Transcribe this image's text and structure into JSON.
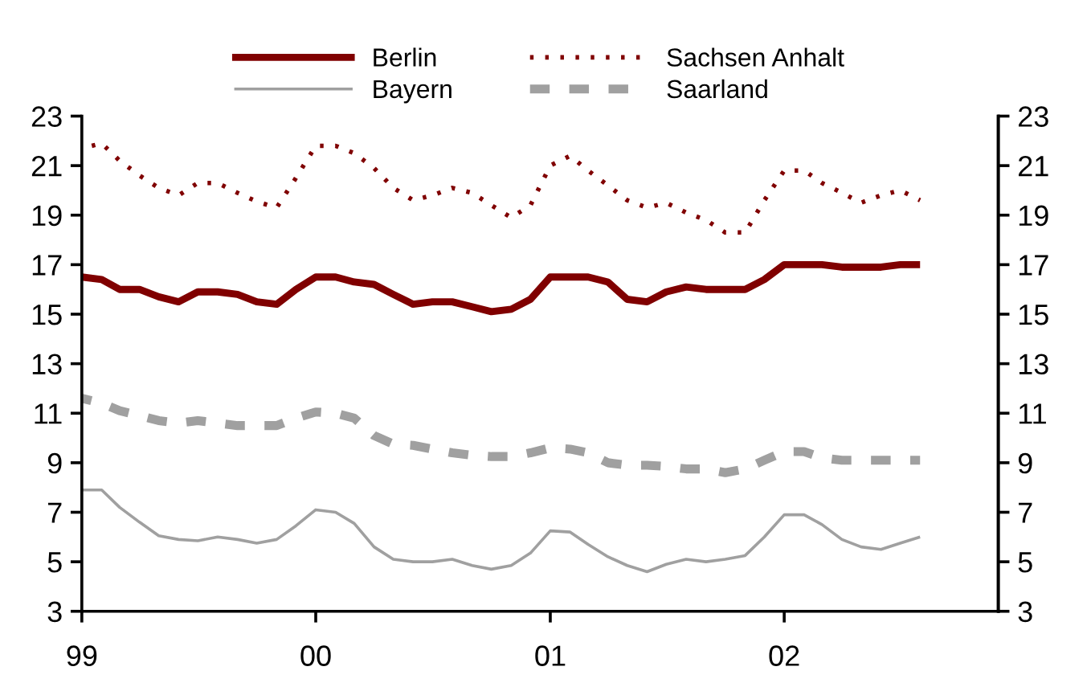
{
  "chart_data": {
    "type": "line",
    "x": [
      "1999-01",
      "1999-02",
      "1999-03",
      "1999-04",
      "1999-05",
      "1999-06",
      "1999-07",
      "1999-08",
      "1999-09",
      "1999-10",
      "1999-11",
      "1999-12",
      "2000-01",
      "2000-02",
      "2000-03",
      "2000-04",
      "2000-05",
      "2000-06",
      "2000-07",
      "2000-08",
      "2000-09",
      "2000-10",
      "2000-11",
      "2000-12",
      "2001-01",
      "2001-02",
      "2001-03",
      "2001-04",
      "2001-05",
      "2001-06",
      "2001-07",
      "2001-08",
      "2001-09",
      "2001-10",
      "2001-11",
      "2001-12",
      "2002-01",
      "2002-02",
      "2002-03",
      "2002-04",
      "2002-05",
      "2002-06",
      "2002-07",
      "2002-08"
    ],
    "series": [
      {
        "name": "Berlin",
        "color": "#800000",
        "line_style": "solid",
        "values": [
          16.5,
          16.4,
          16.0,
          16.0,
          15.7,
          15.5,
          15.9,
          15.9,
          15.8,
          15.5,
          15.4,
          16.0,
          16.5,
          16.5,
          16.3,
          16.2,
          15.8,
          15.4,
          15.5,
          15.5,
          15.3,
          15.1,
          15.2,
          15.6,
          16.5,
          16.5,
          16.5,
          16.3,
          15.6,
          15.5,
          15.9,
          16.1,
          16.0,
          16.0,
          16.0,
          16.4,
          17.0,
          17.0,
          17.0,
          16.9,
          16.9,
          16.9,
          17.0,
          17.0
        ]
      },
      {
        "name": "Bayern",
        "color": "#a0a0a0",
        "line_style": "solid",
        "values": [
          7.9,
          7.9,
          7.2,
          6.6,
          6.05,
          5.9,
          5.85,
          6.0,
          5.9,
          5.75,
          5.9,
          6.45,
          7.1,
          7.0,
          6.55,
          5.6,
          5.1,
          5.0,
          5.0,
          5.1,
          4.85,
          4.7,
          4.85,
          5.35,
          6.25,
          6.2,
          5.7,
          5.2,
          4.85,
          4.6,
          4.9,
          5.1,
          5.0,
          5.1,
          5.25,
          6.0,
          6.9,
          6.9,
          6.5,
          5.9,
          5.6,
          5.5,
          5.75,
          6.0
        ]
      },
      {
        "name": "Sachsen Anhalt",
        "color": "#800000",
        "line_style": "dotted",
        "values": [
          21.7,
          21.9,
          21.2,
          20.6,
          20.1,
          19.8,
          20.3,
          20.3,
          19.9,
          19.55,
          19.3,
          20.5,
          21.8,
          21.8,
          21.5,
          20.9,
          20.1,
          19.6,
          19.8,
          20.1,
          19.9,
          19.4,
          18.9,
          19.4,
          21.0,
          21.4,
          20.8,
          20.2,
          19.6,
          19.3,
          19.5,
          19.1,
          18.8,
          18.3,
          18.3,
          19.6,
          20.8,
          20.8,
          20.3,
          19.9,
          19.5,
          19.8,
          20.0,
          19.6
        ]
      },
      {
        "name": "Saarland",
        "color": "#a0a0a0",
        "line_style": "dashed",
        "values": [
          11.6,
          11.4,
          11.1,
          10.9,
          10.7,
          10.6,
          10.7,
          10.6,
          10.5,
          10.5,
          10.5,
          10.8,
          11.05,
          11.0,
          10.8,
          10.1,
          9.75,
          9.7,
          9.55,
          9.4,
          9.3,
          9.25,
          9.25,
          9.4,
          9.6,
          9.55,
          9.4,
          9.0,
          8.9,
          8.9,
          8.85,
          8.75,
          8.75,
          8.6,
          8.75,
          9.1,
          9.45,
          9.45,
          9.2,
          9.1,
          9.1,
          9.1,
          9.1,
          9.1
        ]
      }
    ],
    "xlim": [
      "1999-01",
      "2002-12"
    ],
    "xticks": [
      {
        "value": "1999-01",
        "label": "99"
      },
      {
        "value": "2000-01",
        "label": "00"
      },
      {
        "value": "2001-01",
        "label": "01"
      },
      {
        "value": "2002-01",
        "label": "02"
      }
    ],
    "ylim": [
      3,
      23
    ],
    "yticks": [
      3,
      5,
      7,
      9,
      11,
      13,
      15,
      17,
      19,
      21,
      23
    ],
    "y2lim": [
      3,
      23
    ],
    "y2ticks": [
      3,
      5,
      7,
      9,
      11,
      13,
      15,
      17,
      19,
      21,
      23
    ],
    "grid": false,
    "legend": "top",
    "marker": "none"
  }
}
